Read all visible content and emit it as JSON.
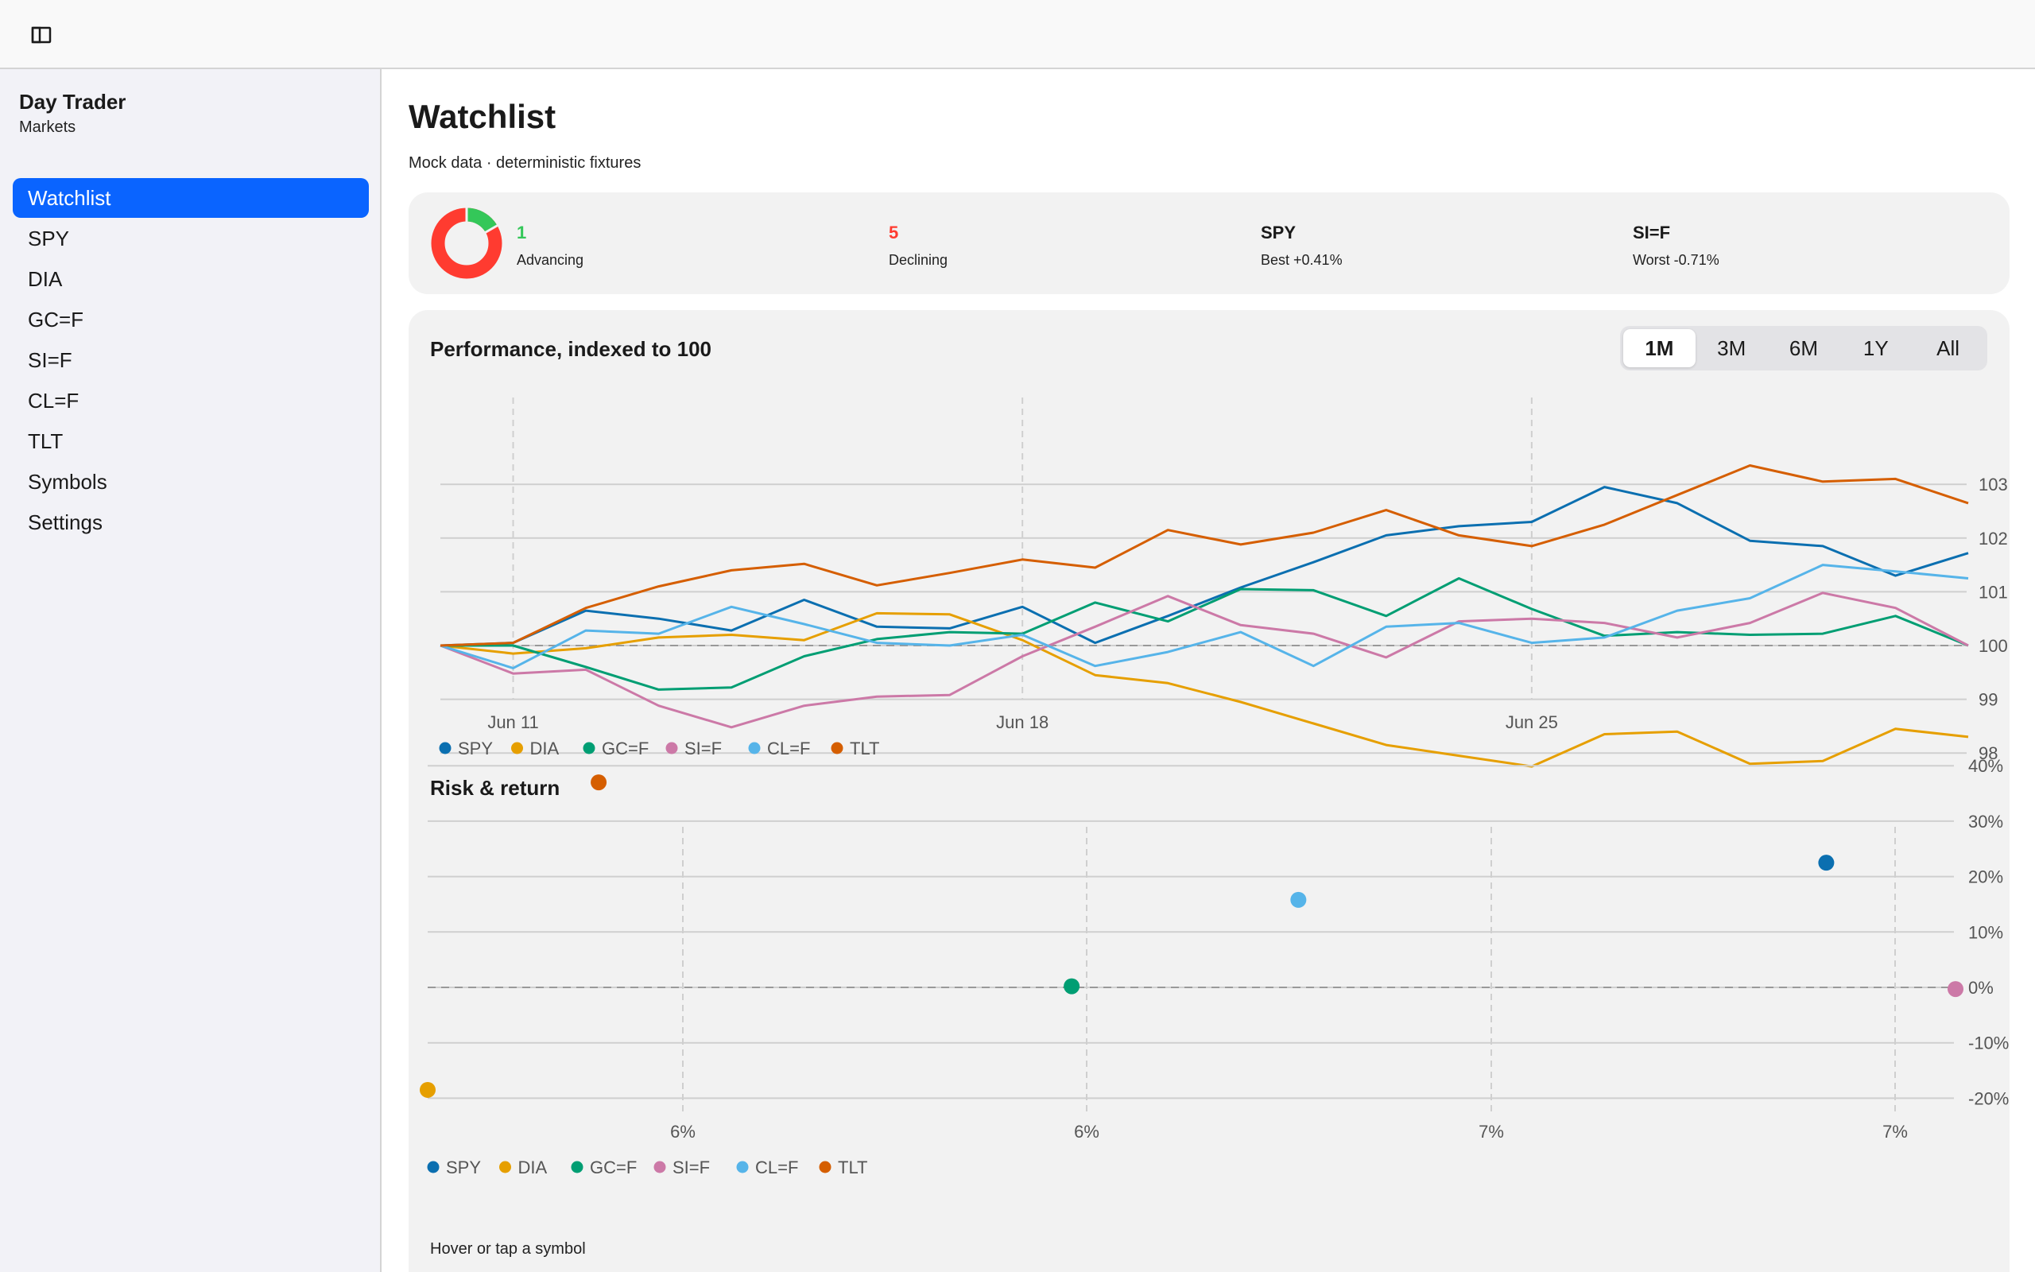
{
  "app": {
    "title": "Day Trader",
    "subtitle": "Markets"
  },
  "nav": [
    {
      "label": "Watchlist",
      "active": true
    },
    {
      "label": "SPY"
    },
    {
      "label": "DIA"
    },
    {
      "label": "GC=F"
    },
    {
      "label": "SI=F"
    },
    {
      "label": "CL=F"
    },
    {
      "label": "TLT"
    },
    {
      "label": "Symbols"
    },
    {
      "label": "Settings"
    }
  ],
  "page": {
    "title": "Watchlist",
    "subtitle": "Mock data · deterministic fixtures"
  },
  "summary": {
    "advancing": {
      "value": "1",
      "label": "Advancing",
      "color": "#34c759"
    },
    "declining": {
      "value": "5",
      "label": "Declining",
      "color": "#ff3b30"
    },
    "best": {
      "value": "SPY",
      "label": "Best +0.41%"
    },
    "worst": {
      "value": "SI=F",
      "label": "Worst -0.71%"
    }
  },
  "performance": {
    "title": "Performance, indexed to 100",
    "ranges": [
      "1M",
      "3M",
      "6M",
      "1Y",
      "All"
    ],
    "selected_range": "1M"
  },
  "risk": {
    "title": "Risk & return"
  },
  "hint": "Hover or tap a symbol",
  "chart_data": [
    {
      "type": "line",
      "title": "Performance, indexed to 100",
      "x": [
        "Jun 10",
        "Jun 11",
        "Jun 12",
        "Jun 13",
        "Jun 14",
        "Jun 15",
        "Jun 16",
        "Jun 17",
        "Jun 18",
        "Jun 19",
        "Jun 20",
        "Jun 21",
        "Jun 22",
        "Jun 23",
        "Jun 24",
        "Jun 25",
        "Jun 26",
        "Jun 27",
        "Jun 28",
        "Jun 29",
        "Jun 30",
        "Jul 1"
      ],
      "x_tick_labels": [
        "Jun 11",
        "Jun 18",
        "Jun 25"
      ],
      "y_ticks": [
        98,
        99,
        100,
        101,
        102,
        103
      ],
      "ylim": [
        97.8,
        103.3
      ],
      "baseline": 100,
      "grid": true,
      "legend": "bottom-left",
      "series": [
        {
          "name": "SPY",
          "color": "#0b6fb0",
          "values": [
            100,
            100.05,
            100.65,
            100.5,
            100.28,
            100.85,
            100.35,
            100.32,
            100.72,
            100.05,
            100.55,
            101.08,
            101.55,
            102.05,
            102.22,
            102.3,
            102.95,
            102.65,
            101.95,
            101.85,
            101.3,
            101.72
          ]
        },
        {
          "name": "DIA",
          "color": "#e69f00",
          "values": [
            100,
            99.85,
            99.95,
            100.15,
            100.2,
            100.1,
            100.6,
            100.58,
            100.1,
            99.45,
            99.3,
            98.95,
            98.55,
            98.15,
            97.95,
            97.75,
            98.35,
            98.4,
            97.8,
            97.85,
            98.45,
            98.3
          ]
        },
        {
          "name": "GC=F",
          "color": "#009e73",
          "values": [
            100,
            100,
            99.6,
            99.18,
            99.22,
            99.8,
            100.12,
            100.25,
            100.22,
            100.8,
            100.45,
            101.05,
            101.03,
            100.55,
            101.25,
            100.68,
            100.18,
            100.25,
            100.2,
            100.22,
            100.55,
            100
          ]
        },
        {
          "name": "SI=F",
          "color": "#cc79a7",
          "values": [
            100,
            99.48,
            99.55,
            98.88,
            98.48,
            98.88,
            99.05,
            99.08,
            99.8,
            100.35,
            100.92,
            100.38,
            100.22,
            99.78,
            100.45,
            100.5,
            100.42,
            100.15,
            100.42,
            100.98,
            100.7,
            100
          ]
        },
        {
          "name": "CL=F",
          "color": "#56b4e9",
          "values": [
            100,
            99.58,
            100.28,
            100.22,
            100.72,
            100.4,
            100.05,
            100,
            100.2,
            99.62,
            99.88,
            100.25,
            99.62,
            100.35,
            100.42,
            100.05,
            100.15,
            100.65,
            100.88,
            101.5,
            101.38,
            101.25
          ]
        },
        {
          "name": "TLT",
          "color": "#d55e00",
          "values": [
            100,
            100.05,
            100.7,
            101.1,
            101.4,
            101.52,
            101.12,
            101.35,
            101.6,
            101.45,
            102.15,
            101.88,
            102.1,
            102.52,
            102.05,
            101.85,
            102.25,
            102.8,
            103.35,
            103.05,
            103.1,
            102.65
          ]
        }
      ]
    },
    {
      "type": "scatter",
      "title": "Risk & return",
      "x_tick_labels": [
        "6%",
        "6%",
        "7%",
        "7%"
      ],
      "y_ticks": [
        -20,
        -10,
        0,
        10,
        20,
        30,
        40
      ],
      "ylim": [
        -20,
        40
      ],
      "baseline": 0,
      "grid": true,
      "legend": "bottom-left",
      "series": [
        {
          "name": "SPY",
          "color": "#0b6fb0",
          "x": 0.9154,
          "y": 22.5
        },
        {
          "name": "DIA",
          "color": "#e69f00",
          "x": 0,
          "y": -18.5
        },
        {
          "name": "GC=F",
          "color": "#009e73",
          "x": 0.4215,
          "y": 0.2
        },
        {
          "name": "SI=F",
          "color": "#cc79a7",
          "x": 1.0,
          "y": -0.3
        },
        {
          "name": "CL=F",
          "color": "#56b4e9",
          "x": 0.5699,
          "y": 15.8
        },
        {
          "name": "TLT",
          "color": "#d55e00",
          "x": 0.1119,
          "y": 37.0
        }
      ]
    }
  ]
}
